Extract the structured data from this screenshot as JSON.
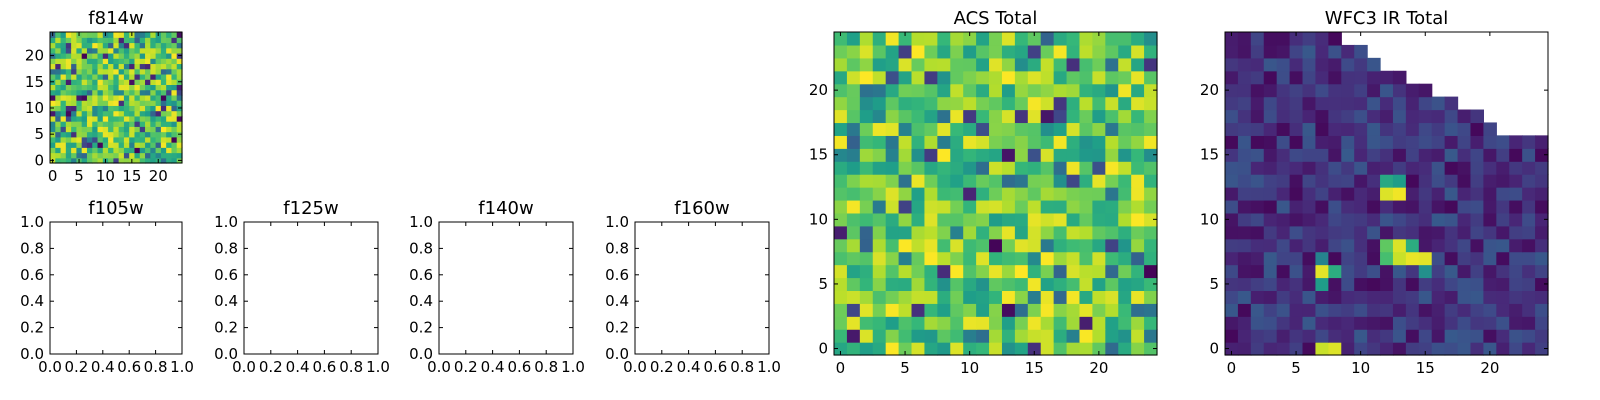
{
  "chart_data": [
    {
      "type": "heatmap",
      "title": "f814w",
      "colormap": "viridis",
      "grid_size": [
        25,
        25
      ],
      "xlim": [
        -0.5,
        24.5
      ],
      "ylim": [
        -0.5,
        24.5
      ],
      "xticks": [
        0,
        5,
        10,
        15,
        20
      ],
      "yticks": [
        0,
        5,
        10,
        15,
        20
      ],
      "value_pattern": "noise: mostly green-yellow (0.55-1.0) with scattered dark purple-blue pixels"
    },
    {
      "type": "scatter",
      "title": "f105w",
      "empty": true,
      "xlim": [
        0.0,
        1.0
      ],
      "ylim": [
        0.0,
        1.0
      ],
      "xticks": [
        "0.0",
        "0.2",
        "0.4",
        "0.6",
        "0.8",
        "1.0"
      ],
      "yticks": [
        "0.0",
        "0.2",
        "0.4",
        "0.6",
        "0.8",
        "1.0"
      ]
    },
    {
      "type": "scatter",
      "title": "f125w",
      "empty": true,
      "xlim": [
        0.0,
        1.0
      ],
      "ylim": [
        0.0,
        1.0
      ],
      "xticks": [
        "0.0",
        "0.2",
        "0.4",
        "0.6",
        "0.8",
        "1.0"
      ],
      "yticks": [
        "0.0",
        "0.2",
        "0.4",
        "0.6",
        "0.8",
        "1.0"
      ]
    },
    {
      "type": "scatter",
      "title": "f140w",
      "empty": true,
      "xlim": [
        0.0,
        1.0
      ],
      "ylim": [
        0.0,
        1.0
      ],
      "xticks": [
        "0.0",
        "0.2",
        "0.4",
        "0.6",
        "0.8",
        "1.0"
      ],
      "yticks": [
        "0.0",
        "0.2",
        "0.4",
        "0.6",
        "0.8",
        "1.0"
      ]
    },
    {
      "type": "scatter",
      "title": "f160w",
      "empty": true,
      "xlim": [
        0.0,
        1.0
      ],
      "ylim": [
        0.0,
        1.0
      ],
      "xticks": [
        "0.0",
        "0.2",
        "0.4",
        "0.6",
        "0.8",
        "1.0"
      ],
      "yticks": [
        "0.0",
        "0.2",
        "0.4",
        "0.6",
        "0.8",
        "1.0"
      ]
    },
    {
      "type": "heatmap",
      "title": "ACS Total",
      "colormap": "viridis",
      "grid_size": [
        25,
        25
      ],
      "xlim": [
        -0.5,
        24.5
      ],
      "ylim": [
        -0.5,
        24.5
      ],
      "xticks": [
        0,
        5,
        10,
        15,
        20
      ],
      "yticks": [
        0,
        5,
        10,
        15,
        20
      ],
      "value_pattern": "noise: mostly green-yellow (0.5-1.0) with a few dark purple/blue pixels"
    },
    {
      "type": "heatmap",
      "title": "WFC3 IR Total",
      "colormap": "viridis",
      "grid_size": [
        25,
        25
      ],
      "xlim": [
        -0.5,
        24.5
      ],
      "ylim": [
        -0.5,
        24.5
      ],
      "xticks": [
        0,
        5,
        10,
        15,
        20
      ],
      "yticks": [
        0,
        5,
        10,
        15,
        20
      ],
      "background_range": [
        0.02,
        0.28
      ],
      "bright_pixels": [
        {
          "x": 12,
          "y": 13,
          "value": 0.6
        },
        {
          "x": 13,
          "y": 13,
          "value": 0.55
        },
        {
          "x": 12,
          "y": 12,
          "value": 0.95
        },
        {
          "x": 13,
          "y": 12,
          "value": 0.98
        },
        {
          "x": 12,
          "y": 8,
          "value": 0.75
        },
        {
          "x": 13,
          "y": 8,
          "value": 0.95
        },
        {
          "x": 14,
          "y": 8,
          "value": 0.62
        },
        {
          "x": 12,
          "y": 7,
          "value": 0.7
        },
        {
          "x": 13,
          "y": 7,
          "value": 0.92
        },
        {
          "x": 14,
          "y": 7,
          "value": 0.97
        },
        {
          "x": 15,
          "y": 7,
          "value": 0.96
        },
        {
          "x": 7,
          "y": 7,
          "value": 0.45
        },
        {
          "x": 7,
          "y": 6,
          "value": 0.96
        },
        {
          "x": 8,
          "y": 6,
          "value": 0.62
        },
        {
          "x": 7,
          "y": 5,
          "value": 0.55
        },
        {
          "x": 15,
          "y": 6,
          "value": 0.5
        },
        {
          "x": 7,
          "y": 0,
          "value": 0.92
        },
        {
          "x": 8,
          "y": 0,
          "value": 0.95
        }
      ],
      "missing_region": [
        {
          "y": 24,
          "x_from": 9
        },
        {
          "y": 23,
          "x_from": 11
        },
        {
          "y": 22,
          "x_from": 12
        },
        {
          "y": 21,
          "x_from": 14
        },
        {
          "y": 20,
          "x_from": 16
        },
        {
          "y": 19,
          "x_from": 18
        },
        {
          "y": 18,
          "x_from": 20
        },
        {
          "y": 17,
          "x_from": 21
        }
      ]
    }
  ]
}
